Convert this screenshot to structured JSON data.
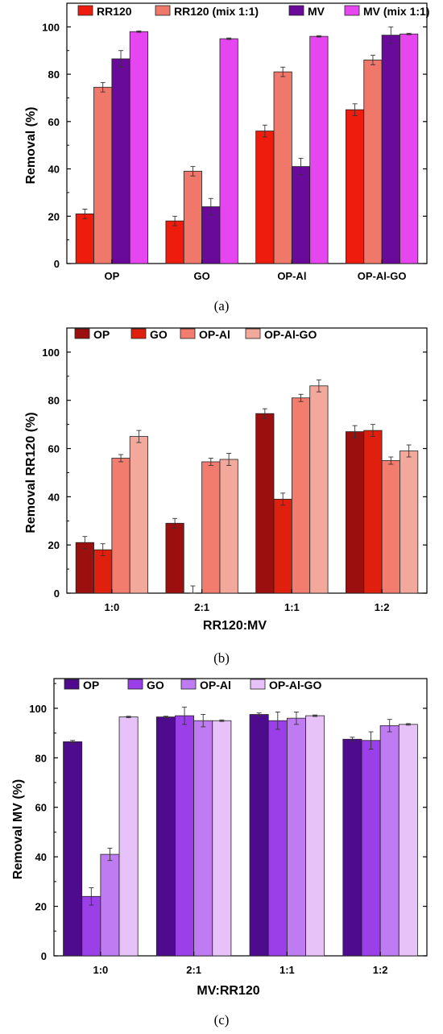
{
  "panels": [
    {
      "panel_label": "(a)",
      "chart_data": {
        "type": "bar",
        "title": "",
        "xlabel": "",
        "ylabel": "Removal (%)",
        "ylim": [
          0,
          110
        ],
        "yticks": [
          0,
          20,
          40,
          60,
          80,
          100
        ],
        "legend_position": "top",
        "categories": [
          "OP",
          "GO",
          "OP-Al",
          "OP-Al-GO"
        ],
        "series": [
          {
            "name": "RR120",
            "color": "#ee1c0c",
            "values": [
              21,
              18,
              56,
              65
            ],
            "errors": [
              2,
              2,
              2.5,
              2.5
            ]
          },
          {
            "name": "RR120 (mix 1:1)",
            "color": "#f0786a",
            "values": [
              74.5,
              39,
              81,
              86
            ],
            "errors": [
              2,
              2,
              2,
              2
            ]
          },
          {
            "name": "MV",
            "color": "#6a0a9a",
            "values": [
              86.5,
              24,
              41,
              96.5
            ],
            "errors": [
              3.5,
              3.5,
              3.5,
              3.5
            ]
          },
          {
            "name": "MV (mix 1:1)",
            "color": "#e646f0",
            "values": [
              98,
              95,
              96,
              97
            ],
            "errors": [
              0.3,
              0.3,
              0.3,
              0.3
            ]
          }
        ]
      }
    },
    {
      "panel_label": "(b)",
      "chart_data": {
        "type": "bar",
        "title": "",
        "xlabel": "RR120:MV",
        "ylabel": "Removal RR120 (%)",
        "ylim": [
          0,
          110
        ],
        "yticks": [
          0,
          20,
          40,
          60,
          80,
          100
        ],
        "legend_position": "top",
        "categories": [
          "1:0",
          "2:1",
          "1:1",
          "1:2"
        ],
        "series": [
          {
            "name": "OP",
            "color": "#9c0f0f",
            "values": [
              21,
              29,
              74.5,
              67
            ],
            "errors": [
              2.5,
              2,
              2,
              2.5
            ]
          },
          {
            "name": "GO",
            "color": "#e0200e",
            "values": [
              18,
              0,
              39,
              67.5
            ],
            "errors": [
              2.5,
              3,
              2.5,
              2.5
            ]
          },
          {
            "name": "OP-Al",
            "color": "#f27c6e",
            "values": [
              56,
              54.5,
              81,
              55
            ],
            "errors": [
              1.5,
              1.5,
              1.5,
              1.5
            ]
          },
          {
            "name": "OP-Al-GO",
            "color": "#f3a89c",
            "values": [
              65,
              55.5,
              86,
              59
            ],
            "errors": [
              2.5,
              2.5,
              2.5,
              2.5
            ]
          }
        ]
      }
    },
    {
      "panel_label": "(c)",
      "chart_data": {
        "type": "bar",
        "title": "",
        "xlabel": "MV:RR120",
        "ylabel": "Removal MV (%)",
        "ylim": [
          0,
          112
        ],
        "yticks": [
          0,
          20,
          40,
          60,
          80,
          100
        ],
        "legend_position": "top",
        "categories": [
          "1:0",
          "2:1",
          "1:1",
          "1:2"
        ],
        "series": [
          {
            "name": "OP",
            "color": "#4e0b8e",
            "values": [
              86.5,
              96.5,
              97.5,
              87.5
            ],
            "errors": [
              0.5,
              0.3,
              0.6,
              0.8
            ]
          },
          {
            "name": "GO",
            "color": "#9b3fe8",
            "values": [
              24,
              97,
              95,
              87
            ],
            "errors": [
              3.5,
              3.5,
              3.5,
              3.5
            ]
          },
          {
            "name": "OP-Al",
            "color": "#bf7cf2",
            "values": [
              41,
              95,
              96,
              93
            ],
            "errors": [
              2.5,
              2.5,
              2.5,
              2.5
            ]
          },
          {
            "name": "OP-Al-GO",
            "color": "#e6c2f9",
            "values": [
              96.5,
              95,
              97,
              93.5
            ],
            "errors": [
              0.3,
              0.3,
              0.3,
              0.3
            ]
          }
        ]
      }
    }
  ]
}
